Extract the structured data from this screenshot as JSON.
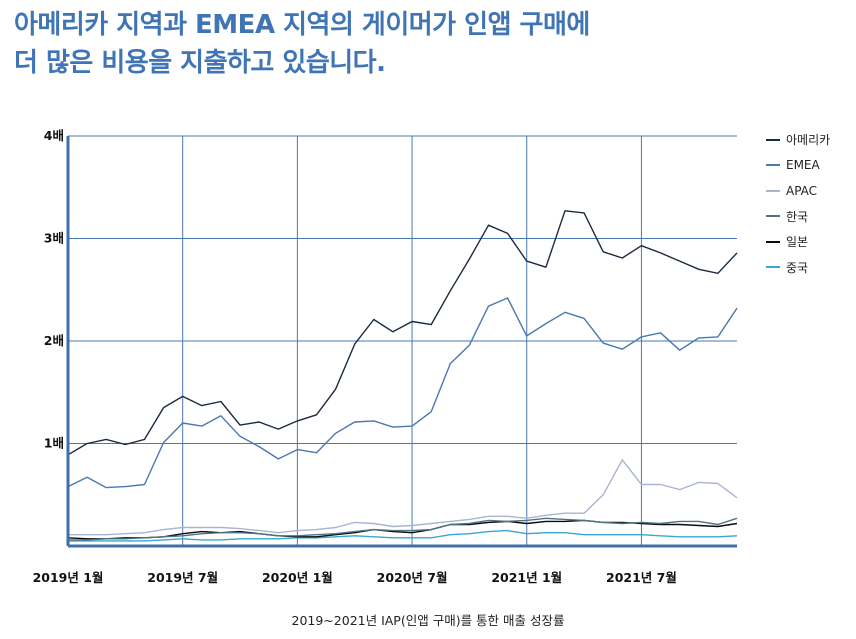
{
  "title_lines": [
    "아메리카 지역과 EMEA 지역의 게이머가 인앱 구매에",
    "더 많은 비용을 지출하고 있습니다."
  ],
  "caption": "2019~2021년 IAP(인앱 구매)를 통한 매출 성장률",
  "chart_data": {
    "type": "line",
    "title": "아메리카 지역과 EMEA 지역의 게이머가 인앱 구매에 더 많은 비용을 지출하고 있습니다.",
    "xlabel": "2019~2021년 IAP(인앱 구매)를 통한 매출 성장률",
    "ylabel": "",
    "ylim": [
      0,
      4
    ],
    "y_ticks": [
      1,
      2,
      3,
      4
    ],
    "y_tick_labels": [
      "1배",
      "2배",
      "3배",
      "4배"
    ],
    "x_tick_indices": [
      0,
      6,
      12,
      18,
      24,
      30
    ],
    "x_tick_labels": [
      "2019년 1월",
      "2019년 7월",
      "2020년 1월",
      "2020년 7월",
      "2021년 1월",
      "2021년 7월"
    ],
    "x_count": 36,
    "grid": true,
    "legend_position": "right",
    "series": [
      {
        "name": "아메리카",
        "color": "#1b2a41",
        "values": [
          0.89,
          1.0,
          1.04,
          0.99,
          1.04,
          1.35,
          1.46,
          1.37,
          1.41,
          1.18,
          1.21,
          1.14,
          1.22,
          1.28,
          1.53,
          1.97,
          2.21,
          2.09,
          2.19,
          2.16,
          2.49,
          2.8,
          3.13,
          3.05,
          2.78,
          2.72,
          3.27,
          3.25,
          2.87,
          2.81,
          2.93,
          2.86,
          2.78,
          2.7,
          2.66,
          2.86
        ]
      },
      {
        "name": "EMEA",
        "color": "#4a78b0",
        "values": [
          0.58,
          0.67,
          0.57,
          0.58,
          0.6,
          1.01,
          1.2,
          1.17,
          1.27,
          1.07,
          0.97,
          0.85,
          0.94,
          0.91,
          1.1,
          1.21,
          1.22,
          1.16,
          1.17,
          1.31,
          1.78,
          1.96,
          2.34,
          2.42,
          2.05,
          2.17,
          2.28,
          2.22,
          1.98,
          1.92,
          2.04,
          2.08,
          1.91,
          2.03,
          2.04,
          2.32
        ]
      },
      {
        "name": "APAC",
        "color": "#a9b4d3",
        "values": [
          0.11,
          0.11,
          0.11,
          0.12,
          0.13,
          0.16,
          0.18,
          0.18,
          0.18,
          0.17,
          0.15,
          0.13,
          0.15,
          0.16,
          0.18,
          0.23,
          0.22,
          0.19,
          0.2,
          0.22,
          0.24,
          0.26,
          0.29,
          0.29,
          0.27,
          0.3,
          0.32,
          0.32,
          0.5,
          0.84,
          0.6,
          0.6,
          0.55,
          0.62,
          0.61,
          0.47
        ]
      },
      {
        "name": "한국",
        "color": "#4d7384",
        "values": [
          0.06,
          0.06,
          0.07,
          0.07,
          0.08,
          0.09,
          0.1,
          0.12,
          0.13,
          0.13,
          0.12,
          0.1,
          0.1,
          0.11,
          0.12,
          0.14,
          0.16,
          0.15,
          0.15,
          0.16,
          0.21,
          0.22,
          0.25,
          0.24,
          0.25,
          0.27,
          0.26,
          0.25,
          0.23,
          0.22,
          0.23,
          0.22,
          0.24,
          0.24,
          0.21,
          0.27
        ]
      },
      {
        "name": "일본",
        "color": "#0b0b0b",
        "values": [
          0.08,
          0.07,
          0.07,
          0.08,
          0.08,
          0.09,
          0.12,
          0.14,
          0.13,
          0.14,
          0.12,
          0.1,
          0.09,
          0.09,
          0.11,
          0.13,
          0.16,
          0.14,
          0.13,
          0.16,
          0.21,
          0.21,
          0.23,
          0.24,
          0.22,
          0.24,
          0.24,
          0.25,
          0.23,
          0.23,
          0.22,
          0.21,
          0.21,
          0.2,
          0.19,
          0.22
        ]
      },
      {
        "name": "중국",
        "color": "#38a7cf",
        "values": [
          0.05,
          0.05,
          0.05,
          0.05,
          0.05,
          0.06,
          0.07,
          0.06,
          0.06,
          0.07,
          0.07,
          0.07,
          0.08,
          0.08,
          0.09,
          0.1,
          0.09,
          0.08,
          0.08,
          0.08,
          0.11,
          0.12,
          0.14,
          0.15,
          0.12,
          0.13,
          0.13,
          0.11,
          0.11,
          0.11,
          0.11,
          0.1,
          0.09,
          0.09,
          0.09,
          0.1
        ]
      }
    ]
  }
}
